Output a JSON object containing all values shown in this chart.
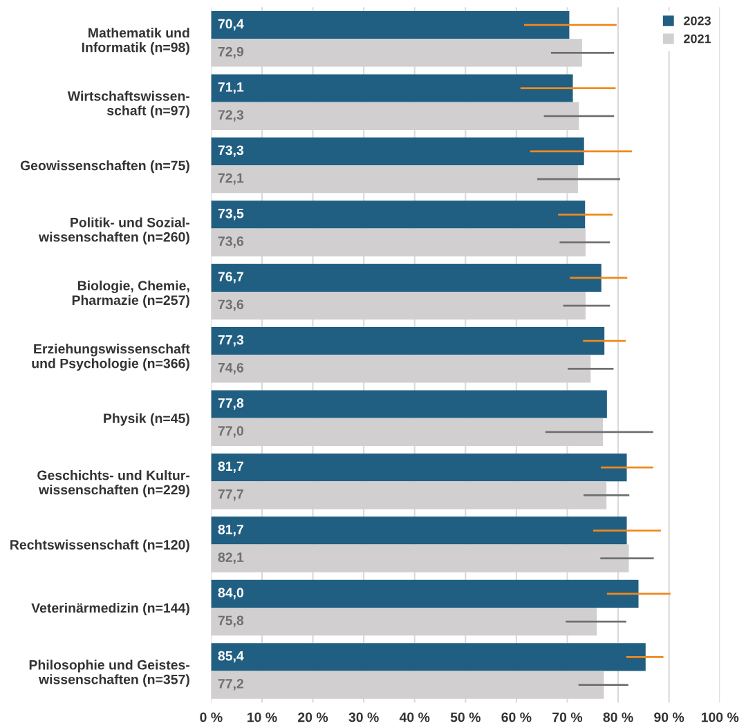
{
  "chart_data": {
    "type": "bar",
    "orientation": "horizontal",
    "categories": [
      "Mathematik und\nInformatik (n=98)",
      "Wirtschaftswissen-\nschaft (n=97)",
      "Geowissenschaften (n=75)",
      "Politik- und Sozial-\nwissenschaften (n=260)",
      "Biologie, Chemie,\nPharmazie (n=257)",
      "Erziehungswissenschaft\nund Psychologie (n=366)",
      "Physik (n=45)",
      "Geschichts- und Kultur-\nwissenschaften (n=229)",
      "Rechtswissenschaft (n=120)",
      "Veterinärmedizin (n=144)",
      "Philosophie und Geistes-\nwissenschaften (n=357)"
    ],
    "series": [
      {
        "name": "2023",
        "color": "#215f82",
        "values": [
          70.4,
          71.1,
          73.3,
          73.5,
          76.7,
          77.3,
          77.8,
          81.7,
          81.7,
          84.0,
          85.4
        ],
        "value_labels": [
          "70,4",
          "71,1",
          "73,3",
          "73,5",
          "76,7",
          "77,3",
          "77,8",
          "81,7",
          "81,7",
          "84,0",
          "85,4"
        ],
        "errors": [
          [
            61.5,
            79.7
          ],
          [
            60.8,
            79.5
          ],
          [
            62.7,
            82.7
          ],
          [
            68.2,
            78.9
          ],
          [
            70.5,
            81.8
          ],
          [
            73.1,
            81.5
          ],
          null,
          [
            76.6,
            86.9
          ],
          [
            75.1,
            88.4
          ],
          [
            77.8,
            90.3
          ],
          [
            81.6,
            88.9
          ]
        ]
      },
      {
        "name": "2021",
        "color": "#d1cfd0",
        "values": [
          72.9,
          72.3,
          72.1,
          73.6,
          73.6,
          74.6,
          77.0,
          77.7,
          82.1,
          75.8,
          77.2
        ],
        "value_labels": [
          "72,9",
          "72,3",
          "72,1",
          "73,6",
          "73,6",
          "74,6",
          "77,0",
          "77,7",
          "82,1",
          "75,8",
          "77,2"
        ],
        "errors": [
          [
            66.8,
            79.2
          ],
          [
            65.4,
            79.2
          ],
          [
            64.1,
            80.4
          ],
          [
            68.5,
            78.4
          ],
          [
            69.2,
            78.4
          ],
          [
            70.1,
            79.1
          ],
          [
            65.7,
            86.9
          ],
          [
            73.2,
            82.2
          ],
          [
            76.5,
            87.0
          ],
          [
            69.7,
            81.6
          ],
          [
            72.2,
            82.0
          ]
        ]
      }
    ],
    "xlim": [
      0,
      100
    ],
    "xticks": [
      {
        "value": 0,
        "label": "0 %"
      },
      {
        "value": 10,
        "label": "10 %"
      },
      {
        "value": 20,
        "label": "20 %"
      },
      {
        "value": 30,
        "label": "30 %"
      },
      {
        "value": 40,
        "label": "40 %"
      },
      {
        "value": 50,
        "label": "50 %"
      },
      {
        "value": 60,
        "label": "60 %"
      },
      {
        "value": 70,
        "label": "70 %"
      },
      {
        "value": 80,
        "label": "80 %"
      },
      {
        "value": 90,
        "label": "90 %"
      },
      {
        "value": 100,
        "label": "100 %"
      }
    ],
    "grid": "x",
    "legend": "top right"
  }
}
